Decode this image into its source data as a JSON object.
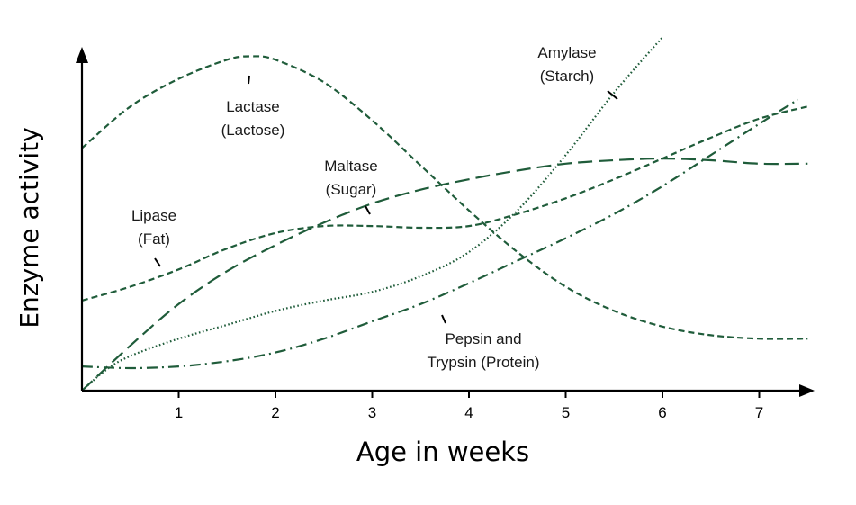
{
  "chart_data": {
    "type": "line",
    "title": "",
    "xlabel": "Age in weeks",
    "ylabel": "Enzyme activity",
    "xlim": [
      0,
      7.5
    ],
    "ylim": [
      0,
      10
    ],
    "xticks": [
      1,
      2,
      3,
      4,
      5,
      6,
      7
    ],
    "xtick_labels": [
      "1",
      "2",
      "3",
      "4",
      "5",
      "6",
      "7"
    ],
    "grid": false,
    "legend": "none",
    "line_color": "#1f5c3a",
    "series": [
      {
        "name": "Lactase (Lactose)",
        "label_lines": [
          "Lactase",
          "(Lactose)"
        ],
        "dash": "dashed",
        "x": [
          0,
          0.5,
          1,
          1.5,
          1.75,
          2,
          2.5,
          3,
          3.5,
          4,
          4.5,
          5,
          5.5,
          6,
          6.5,
          7,
          7.5
        ],
        "y": [
          7.0,
          8.2,
          9.0,
          9.55,
          9.65,
          9.55,
          8.9,
          7.8,
          6.5,
          5.2,
          4.0,
          3.0,
          2.3,
          1.85,
          1.6,
          1.5,
          1.5
        ]
      },
      {
        "name": "Amylase (Starch)",
        "label_lines": [
          "Amylase",
          "(Starch)"
        ],
        "dash": "dotted",
        "x": [
          0,
          0.25,
          0.5,
          1,
          1.5,
          2,
          2.5,
          3,
          3.5,
          4,
          4.5,
          5,
          5.5,
          6
        ],
        "y": [
          0,
          0.6,
          1.0,
          1.5,
          1.9,
          2.3,
          2.6,
          2.85,
          3.3,
          4.0,
          5.2,
          6.8,
          8.6,
          10.2
        ]
      },
      {
        "name": "Maltase (Sugar)",
        "label_lines": [
          "Maltase",
          "(Sugar)"
        ],
        "dash": "long-dash",
        "x": [
          0,
          0.5,
          1,
          1.5,
          2,
          2.5,
          3,
          3.5,
          4,
          4.5,
          5,
          5.5,
          6,
          6.5,
          7,
          7.5
        ],
        "y": [
          0,
          1.3,
          2.5,
          3.45,
          4.2,
          4.85,
          5.4,
          5.8,
          6.1,
          6.35,
          6.55,
          6.65,
          6.7,
          6.65,
          6.55,
          6.55
        ]
      },
      {
        "name": "Lipase (Fat)",
        "label_lines": [
          "Lipase",
          "(Fat)"
        ],
        "dash": "dashed",
        "x": [
          0,
          0.5,
          1,
          1.5,
          2,
          2.5,
          3,
          3.5,
          4,
          4.5,
          5,
          5.5,
          6,
          6.5,
          7,
          7.5
        ],
        "y": [
          2.6,
          3.0,
          3.5,
          4.1,
          4.55,
          4.75,
          4.75,
          4.7,
          4.75,
          5.1,
          5.55,
          6.1,
          6.7,
          7.3,
          7.85,
          8.2
        ]
      },
      {
        "name": "Pepsin and Trypsin (Protein)",
        "label_lines": [
          "Pepsin and",
          "Trypsin (Protein)"
        ],
        "dash": "dash-dot",
        "x": [
          0,
          0.5,
          1,
          1.5,
          2,
          2.5,
          3,
          3.5,
          4,
          4.5,
          5,
          5.5,
          6,
          6.5,
          7,
          7.4
        ],
        "y": [
          0.7,
          0.65,
          0.7,
          0.85,
          1.1,
          1.5,
          2.0,
          2.5,
          3.1,
          3.75,
          4.4,
          5.1,
          5.9,
          6.8,
          7.7,
          8.4
        ]
      }
    ]
  }
}
